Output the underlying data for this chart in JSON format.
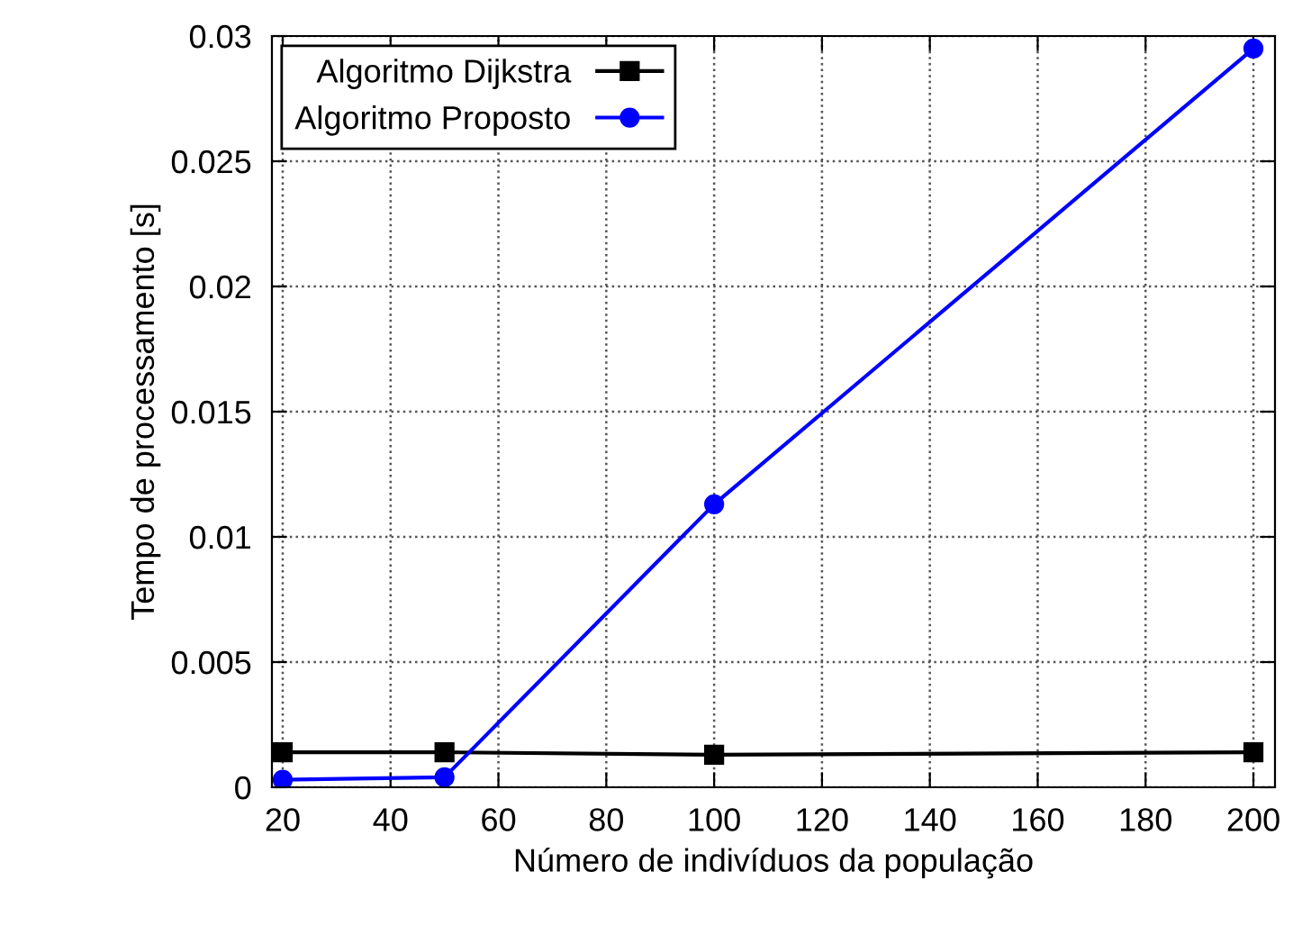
{
  "chart_data": {
    "type": "line",
    "xlabel": "Número de indivíduos da população",
    "ylabel": "Tempo de processamento [s]",
    "x": [
      20,
      50,
      100,
      200
    ],
    "series": [
      {
        "name": "Algoritmo Dijkstra",
        "color": "#000000",
        "values": [
          0.0014,
          0.0014,
          0.0013,
          0.0014
        ],
        "marker": "square"
      },
      {
        "name": "Algoritmo Proposto",
        "color": "#0000ff",
        "values": [
          0.0003,
          0.0004,
          0.0113,
          0.0295
        ],
        "marker": "circle"
      }
    ],
    "xlim": [
      18,
      204
    ],
    "xticks": [
      20,
      40,
      60,
      80,
      100,
      120,
      140,
      160,
      180,
      200
    ],
    "ylim": [
      0,
      0.03
    ],
    "yticks": [
      0,
      0.005,
      0.01,
      0.015,
      0.02,
      0.025,
      0.03
    ],
    "grid": true,
    "legend": "top left",
    "line_style": "solid"
  }
}
